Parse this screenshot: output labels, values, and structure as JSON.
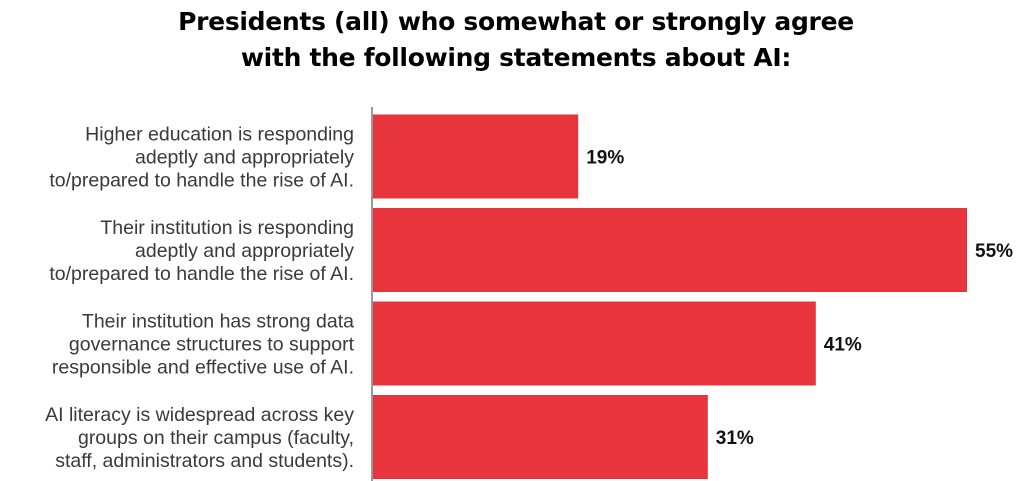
{
  "chart_data": {
    "type": "bar",
    "orientation": "horizontal",
    "title": [
      "Presidents (all) who somewhat or strongly agree",
      "with the following statements about AI:"
    ],
    "categories": [
      [
        "Higher education is responding",
        "adeptly and appropriately",
        "to/prepared to handle the rise of AI."
      ],
      [
        "Their institution is responding",
        "adeptly and appropriately",
        "to/prepared to handle the rise of AI."
      ],
      [
        "Their institution has strong data",
        "governance structures to support",
        "responsible and effective use of AI."
      ],
      [
        "AI literacy is widespread across key",
        "groups on their campus (faculty,",
        "staff, administrators and students)."
      ]
    ],
    "values": [
      19,
      55,
      41,
      31
    ],
    "value_labels": [
      "19%",
      "55%",
      "41%",
      "31%"
    ],
    "unit": "%",
    "xlim": [
      0,
      55
    ],
    "grid": false,
    "legend": "none",
    "bar_color": "#e8343c",
    "axis_color": "#999999"
  }
}
